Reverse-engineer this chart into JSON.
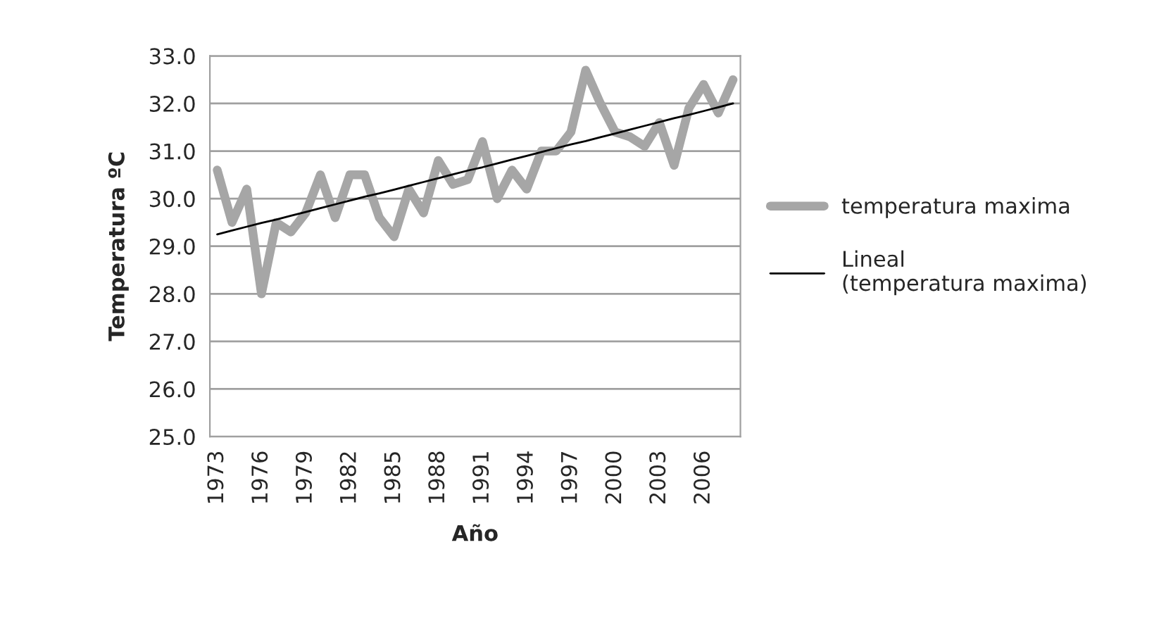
{
  "chart_data": {
    "type": "line",
    "xlabel": "Año",
    "ylabel": "Temperatura ºC",
    "categories": [
      "1973",
      null,
      null,
      "1976",
      null,
      null,
      "1979",
      null,
      null,
      "1982",
      null,
      null,
      "1985",
      null,
      null,
      "1988",
      null,
      null,
      "1991",
      null,
      null,
      "1994",
      null,
      null,
      "1997",
      null,
      null,
      "2000",
      null,
      null,
      "2003",
      null,
      null,
      "2006",
      null,
      null
    ],
    "series": [
      {
        "name": "temperatura maxima",
        "color": "#a6a6a6",
        "values": [
          30.6,
          29.5,
          30.2,
          28.0,
          29.5,
          29.3,
          29.7,
          30.5,
          29.6,
          30.5,
          30.5,
          29.6,
          29.2,
          30.2,
          29.7,
          30.8,
          30.3,
          30.4,
          31.2,
          30.0,
          30.6,
          30.2,
          31.0,
          31.0,
          31.4,
          32.7,
          32.0,
          31.4,
          31.3,
          31.1,
          31.6,
          30.7,
          31.9,
          32.4,
          31.8,
          32.5
        ]
      },
      {
        "name": "Lineal (temperatura maxima)",
        "color": "#000000",
        "values": [
          29.25,
          29.33,
          29.41,
          29.49,
          29.56,
          29.64,
          29.72,
          29.8,
          29.88,
          29.96,
          30.04,
          30.11,
          30.19,
          30.27,
          30.35,
          30.43,
          30.51,
          30.59,
          30.66,
          30.74,
          30.82,
          30.9,
          30.98,
          31.06,
          31.14,
          31.21,
          31.29,
          31.37,
          31.45,
          31.53,
          31.61,
          31.69,
          31.76,
          31.84,
          31.92,
          32.0
        ]
      }
    ],
    "ylim": [
      25.0,
      33.0
    ],
    "yticks": [
      {
        "value": 25,
        "label": "25.0"
      },
      {
        "value": 26,
        "label": "26.0"
      },
      {
        "value": 27,
        "label": "27.0"
      },
      {
        "value": 28,
        "label": "28.0"
      },
      {
        "value": 29,
        "label": "29.0"
      },
      {
        "value": 30,
        "label": "30.0"
      },
      {
        "value": 31,
        "label": "31.0"
      },
      {
        "value": 32,
        "label": "32.0"
      },
      {
        "value": 33,
        "label": "33.0"
      }
    ],
    "grid": "y",
    "legend": "right",
    "marker": "none",
    "line_style": "solid"
  }
}
